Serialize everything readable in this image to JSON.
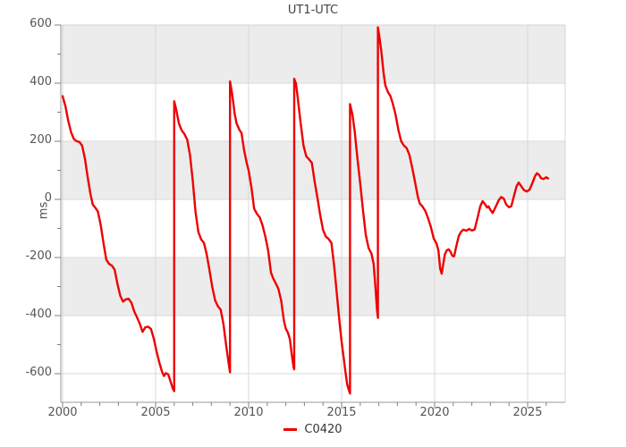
{
  "title": "UT1-UTC",
  "legend": {
    "label": "C0420"
  },
  "y_axis": {
    "unit_label": "ms",
    "major_ticks": [
      600,
      400,
      200,
      0,
      -200,
      -400,
      -600
    ],
    "minor_ticks": [
      500,
      300,
      100,
      -100,
      -300,
      -500
    ]
  },
  "x_axis": {
    "major_ticks": [
      2000,
      2005,
      2010,
      2015,
      2020,
      2025
    ],
    "minor_ticks": [
      2001,
      2002,
      2003,
      2004,
      2006,
      2007,
      2008,
      2009,
      2011,
      2012,
      2013,
      2014,
      2016,
      2017,
      2018,
      2019,
      2021,
      2022,
      2023,
      2024,
      2026
    ]
  },
  "colors": {
    "line": "#ee0000",
    "band": "#ececec",
    "grid": "#d9d9d9",
    "border": "#d4d4d4",
    "axis": "#9a9a9a",
    "tick": "#808080",
    "text": "#555555"
  },
  "chart_data": {
    "type": "line",
    "title": "UT1-UTC",
    "xlabel": "",
    "ylabel": "ms",
    "xlim": [
      1999.9,
      2027.1
    ],
    "ylim": [
      -698,
      600
    ],
    "grid": true,
    "legend_position": "bottom-center",
    "shaded_bands_ms": [
      [
        600,
        400
      ],
      [
        200,
        0
      ],
      [
        -200,
        -400
      ]
    ],
    "series": [
      {
        "name": "C0420",
        "color": "#ee0000",
        "points": [
          [
            2000.0,
            355
          ],
          [
            2000.15,
            322
          ],
          [
            2000.3,
            272
          ],
          [
            2000.45,
            232
          ],
          [
            2000.6,
            208
          ],
          [
            2000.75,
            200
          ],
          [
            2000.9,
            198
          ],
          [
            2001.05,
            185
          ],
          [
            2001.2,
            140
          ],
          [
            2001.35,
            75
          ],
          [
            2001.5,
            18
          ],
          [
            2001.62,
            -18
          ],
          [
            2001.75,
            -28
          ],
          [
            2001.9,
            -42
          ],
          [
            2002.05,
            -88
          ],
          [
            2002.2,
            -152
          ],
          [
            2002.35,
            -208
          ],
          [
            2002.5,
            -222
          ],
          [
            2002.65,
            -228
          ],
          [
            2002.8,
            -242
          ],
          [
            2002.95,
            -292
          ],
          [
            2003.1,
            -332
          ],
          [
            2003.25,
            -352
          ],
          [
            2003.4,
            -344
          ],
          [
            2003.55,
            -342
          ],
          [
            2003.7,
            -356
          ],
          [
            2003.85,
            -386
          ],
          [
            2004.0,
            -406
          ],
          [
            2004.15,
            -428
          ],
          [
            2004.3,
            -456
          ],
          [
            2004.45,
            -440
          ],
          [
            2004.6,
            -438
          ],
          [
            2004.75,
            -446
          ],
          [
            2004.9,
            -478
          ],
          [
            2005.05,
            -522
          ],
          [
            2005.2,
            -562
          ],
          [
            2005.35,
            -594
          ],
          [
            2005.45,
            -608
          ],
          [
            2005.55,
            -598
          ],
          [
            2005.68,
            -602
          ],
          [
            2005.8,
            -626
          ],
          [
            2005.92,
            -650
          ],
          [
            2006.0,
            -660
          ],
          [
            2006.0,
            338
          ],
          [
            2006.12,
            305
          ],
          [
            2006.25,
            262
          ],
          [
            2006.4,
            238
          ],
          [
            2006.55,
            225
          ],
          [
            2006.7,
            205
          ],
          [
            2006.85,
            152
          ],
          [
            2007.0,
            62
          ],
          [
            2007.15,
            -45
          ],
          [
            2007.3,
            -112
          ],
          [
            2007.45,
            -138
          ],
          [
            2007.6,
            -150
          ],
          [
            2007.75,
            -190
          ],
          [
            2007.9,
            -245
          ],
          [
            2008.05,
            -302
          ],
          [
            2008.2,
            -348
          ],
          [
            2008.35,
            -368
          ],
          [
            2008.5,
            -380
          ],
          [
            2008.65,
            -430
          ],
          [
            2008.8,
            -505
          ],
          [
            2008.92,
            -560
          ],
          [
            2009.0,
            -595
          ],
          [
            2009.0,
            406
          ],
          [
            2009.12,
            360
          ],
          [
            2009.25,
            295
          ],
          [
            2009.35,
            262
          ],
          [
            2009.5,
            240
          ],
          [
            2009.62,
            228
          ],
          [
            2009.75,
            172
          ],
          [
            2009.9,
            125
          ],
          [
            2010.0,
            100
          ],
          [
            2010.15,
            42
          ],
          [
            2010.3,
            -32
          ],
          [
            2010.45,
            -50
          ],
          [
            2010.6,
            -62
          ],
          [
            2010.75,
            -90
          ],
          [
            2010.9,
            -128
          ],
          [
            2011.05,
            -175
          ],
          [
            2011.2,
            -252
          ],
          [
            2011.32,
            -272
          ],
          [
            2011.45,
            -288
          ],
          [
            2011.6,
            -308
          ],
          [
            2011.75,
            -348
          ],
          [
            2011.9,
            -418
          ],
          [
            2012.0,
            -445
          ],
          [
            2012.12,
            -460
          ],
          [
            2012.22,
            -482
          ],
          [
            2012.32,
            -535
          ],
          [
            2012.42,
            -578
          ],
          [
            2012.45,
            -585
          ],
          [
            2012.45,
            415
          ],
          [
            2012.55,
            398
          ],
          [
            2012.65,
            345
          ],
          [
            2012.8,
            262
          ],
          [
            2012.95,
            185
          ],
          [
            2013.1,
            148
          ],
          [
            2013.25,
            138
          ],
          [
            2013.4,
            126
          ],
          [
            2013.55,
            62
          ],
          [
            2013.7,
            5
          ],
          [
            2013.85,
            -55
          ],
          [
            2014.0,
            -105
          ],
          [
            2014.15,
            -128
          ],
          [
            2014.3,
            -136
          ],
          [
            2014.45,
            -150
          ],
          [
            2014.6,
            -230
          ],
          [
            2014.75,
            -330
          ],
          [
            2014.9,
            -430
          ],
          [
            2015.0,
            -490
          ],
          [
            2015.1,
            -540
          ],
          [
            2015.2,
            -592
          ],
          [
            2015.3,
            -636
          ],
          [
            2015.4,
            -658
          ],
          [
            2015.45,
            -668
          ],
          [
            2015.45,
            328
          ],
          [
            2015.58,
            292
          ],
          [
            2015.7,
            235
          ],
          [
            2015.85,
            140
          ],
          [
            2016.0,
            55
          ],
          [
            2016.15,
            -38
          ],
          [
            2016.3,
            -122
          ],
          [
            2016.45,
            -168
          ],
          [
            2016.6,
            -186
          ],
          [
            2016.72,
            -222
          ],
          [
            2016.82,
            -305
          ],
          [
            2016.9,
            -378
          ],
          [
            2016.95,
            -408
          ],
          [
            2016.95,
            592
          ],
          [
            2017.05,
            552
          ],
          [
            2017.15,
            502
          ],
          [
            2017.25,
            438
          ],
          [
            2017.35,
            392
          ],
          [
            2017.5,
            368
          ],
          [
            2017.62,
            356
          ],
          [
            2017.75,
            330
          ],
          [
            2017.9,
            292
          ],
          [
            2018.05,
            240
          ],
          [
            2018.2,
            200
          ],
          [
            2018.35,
            185
          ],
          [
            2018.5,
            176
          ],
          [
            2018.65,
            152
          ],
          [
            2018.8,
            108
          ],
          [
            2018.95,
            58
          ],
          [
            2019.1,
            8
          ],
          [
            2019.2,
            -14
          ],
          [
            2019.35,
            -25
          ],
          [
            2019.5,
            -40
          ],
          [
            2019.65,
            -65
          ],
          [
            2019.8,
            -95
          ],
          [
            2019.95,
            -135
          ],
          [
            2020.1,
            -152
          ],
          [
            2020.2,
            -175
          ],
          [
            2020.3,
            -238
          ],
          [
            2020.38,
            -256
          ],
          [
            2020.46,
            -224
          ],
          [
            2020.55,
            -190
          ],
          [
            2020.65,
            -176
          ],
          [
            2020.75,
            -172
          ],
          [
            2020.85,
            -180
          ],
          [
            2020.95,
            -194
          ],
          [
            2021.05,
            -196
          ],
          [
            2021.15,
            -166
          ],
          [
            2021.3,
            -126
          ],
          [
            2021.42,
            -112
          ],
          [
            2021.55,
            -104
          ],
          [
            2021.7,
            -108
          ],
          [
            2021.85,
            -102
          ],
          [
            2022.0,
            -107
          ],
          [
            2022.15,
            -104
          ],
          [
            2022.3,
            -66
          ],
          [
            2022.45,
            -24
          ],
          [
            2022.58,
            -6
          ],
          [
            2022.7,
            -16
          ],
          [
            2022.82,
            -28
          ],
          [
            2022.9,
            -24
          ],
          [
            2023.0,
            -36
          ],
          [
            2023.12,
            -47
          ],
          [
            2023.28,
            -26
          ],
          [
            2023.45,
            -2
          ],
          [
            2023.58,
            8
          ],
          [
            2023.72,
            2
          ],
          [
            2023.85,
            -18
          ],
          [
            2024.0,
            -27
          ],
          [
            2024.12,
            -24
          ],
          [
            2024.25,
            8
          ],
          [
            2024.4,
            44
          ],
          [
            2024.52,
            58
          ],
          [
            2024.65,
            46
          ],
          [
            2024.8,
            32
          ],
          [
            2024.95,
            27
          ],
          [
            2025.1,
            33
          ],
          [
            2025.25,
            55
          ],
          [
            2025.4,
            80
          ],
          [
            2025.5,
            90
          ],
          [
            2025.62,
            84
          ],
          [
            2025.72,
            73
          ],
          [
            2025.85,
            70
          ],
          [
            2026.0,
            76
          ],
          [
            2026.1,
            72
          ]
        ]
      }
    ]
  }
}
